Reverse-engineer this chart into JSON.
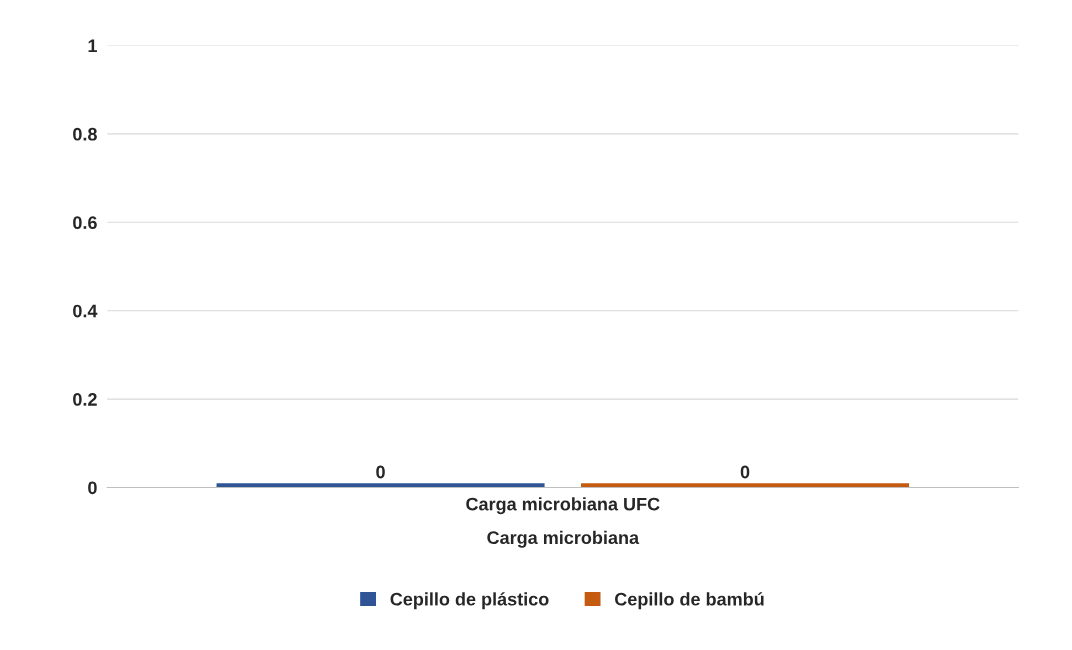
{
  "chart_data": {
    "type": "bar",
    "categories": [
      "Carga microbiana UFC"
    ],
    "xlabel": "Carga microbiana",
    "series": [
      {
        "name": "Cepillo de plástico",
        "color": "#2f5597",
        "values": [
          0
        ]
      },
      {
        "name": "Cepillo de bambú",
        "color": "#c55a11",
        "values": [
          0
        ]
      }
    ],
    "ylim": [
      0,
      1
    ],
    "yticks": [
      0,
      0.2,
      0.4,
      0.6,
      0.8,
      1
    ],
    "grid": "y",
    "legend": "bottom",
    "data_labels": true
  }
}
